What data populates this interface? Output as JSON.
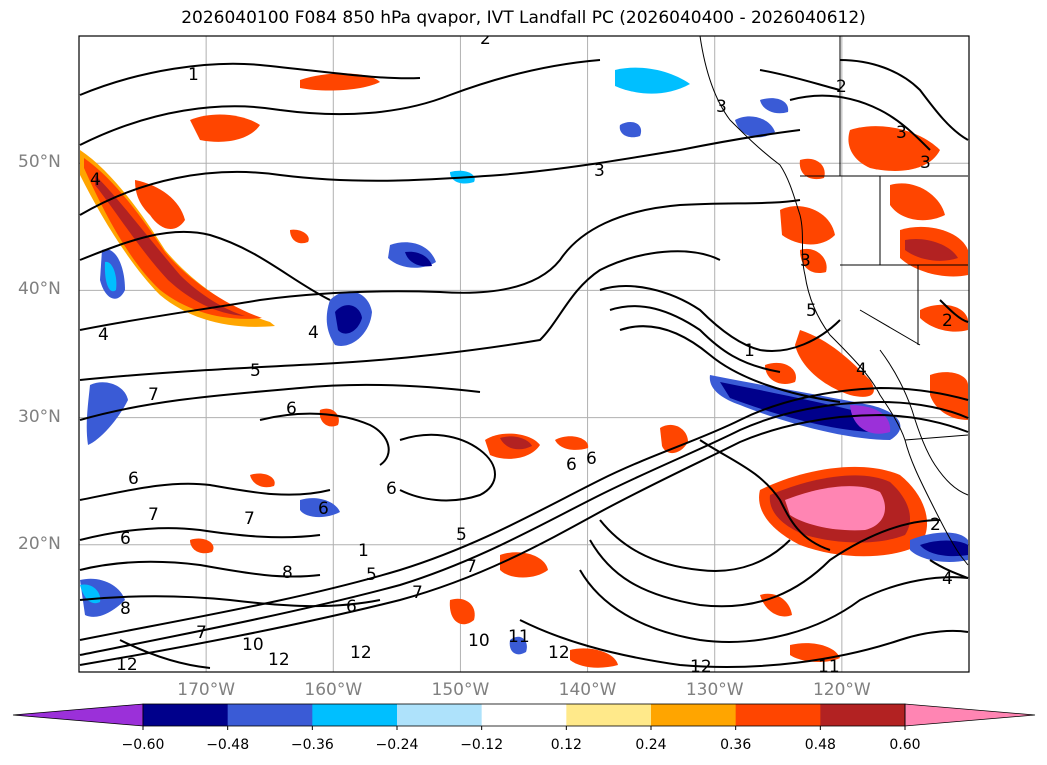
{
  "title": "2026040100 F084 850 hPa qvapor, IVT Landfall PC (2026040400 - 2026040612)",
  "chart_data": {
    "type": "heatmap",
    "title": "2026040100 F084 850 hPa qvapor, IVT Landfall PC (2026040400 - 2026040612)",
    "map_extent": {
      "lon": [
        180,
        110
      ],
      "lat": [
        10,
        60
      ]
    },
    "lat_ticks": [
      {
        "value": 50,
        "label": "50°N"
      },
      {
        "value": 40,
        "label": "40°N"
      },
      {
        "value": 30,
        "label": "30°N"
      },
      {
        "value": 20,
        "label": "20°N"
      }
    ],
    "lon_ticks": [
      {
        "value": 170,
        "label": "170°W"
      },
      {
        "value": 160,
        "label": "160°W"
      },
      {
        "value": 150,
        "label": "150°W"
      },
      {
        "value": 140,
        "label": "140°W"
      },
      {
        "value": 130,
        "label": "130°W"
      },
      {
        "value": 120,
        "label": "120°W"
      }
    ],
    "colorbar": {
      "levels": [
        -0.6,
        -0.48,
        -0.36,
        -0.24,
        -0.12,
        0.12,
        0.24,
        0.36,
        0.48,
        0.6
      ],
      "tick_labels": [
        "−0.60",
        "−0.48",
        "−0.36",
        "−0.24",
        "−0.12",
        "0.12",
        "0.24",
        "0.36",
        "0.48",
        "0.60"
      ],
      "colors": [
        "#9b30d9",
        "#00008b",
        "#3a5bd6",
        "#00bfff",
        "#aee2fb",
        "#ffffff",
        "#ffe98a",
        "#ffa500",
        "#ff4500",
        "#b22222",
        "#ff85b3"
      ],
      "extend": "both"
    },
    "contour_labels": [
      "2",
      "1",
      "2",
      "3",
      "3",
      "3",
      "3",
      "4",
      "4",
      "4",
      "4",
      "5",
      "6",
      "7",
      "6",
      "6",
      "6",
      "6",
      "6",
      "7",
      "6",
      "8",
      "7",
      "8",
      "7",
      "5",
      "6",
      "5",
      "10",
      "7",
      "7",
      "10",
      "12",
      "12",
      "12",
      "11",
      "12",
      "12",
      "11",
      "1",
      "2",
      "3",
      "2",
      "1",
      "4",
      "5"
    ]
  }
}
